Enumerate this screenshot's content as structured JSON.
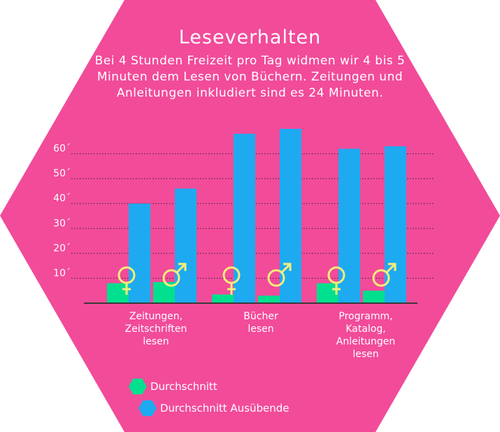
{
  "colors": {
    "background": "#f24b9a",
    "avg": "#00e08e",
    "active": "#1eaaf0",
    "symbol": "#f4ee7a",
    "text": "#ffffff"
  },
  "header": {
    "title": "Leseverhalten",
    "subtitle": "Bei 4 Stunden Freizeit pro Tag widmen wir 4 bis 5 Minuten dem Lesen von Büchern. Zeitungen und Anleitungen inkludiert sind es 24 Minuten."
  },
  "legend": {
    "items": [
      {
        "label": "Durchschnitt",
        "color": "#00e08e"
      },
      {
        "label": "Durchschnitt Ausübende",
        "color": "#1eaaf0"
      }
    ]
  },
  "chart_data": {
    "type": "bar",
    "title": "Leseverhalten",
    "ylim": [
      0,
      70
    ],
    "yticks": [
      {
        "value": 10,
        "label": "10´"
      },
      {
        "value": 20,
        "label": "20´"
      },
      {
        "value": 30,
        "label": "30´"
      },
      {
        "value": 40,
        "label": "40´"
      },
      {
        "value": 50,
        "label": "50´"
      },
      {
        "value": 60,
        "label": "60´"
      }
    ],
    "grid": true,
    "legend_position": "bottom-left",
    "categories": [
      {
        "lines": [
          "Zeitungen,",
          "Zeitschriften",
          "lesen"
        ],
        "groups": [
          {
            "gender": "female",
            "symbol": "♀",
            "avg": 8,
            "active": 40
          },
          {
            "gender": "male",
            "symbol": "♂",
            "avg": 8.5,
            "active": 46
          }
        ]
      },
      {
        "lines": [
          "Bücher",
          "lesen"
        ],
        "groups": [
          {
            "gender": "female",
            "symbol": "♀",
            "avg": 3.5,
            "active": 68
          },
          {
            "gender": "male",
            "symbol": "♂",
            "avg": 3,
            "active": 70
          }
        ]
      },
      {
        "lines": [
          "Programm,",
          "Katalog,",
          "Anleitungen",
          "lesen"
        ],
        "groups": [
          {
            "gender": "female",
            "symbol": "♀",
            "avg": 8,
            "active": 62
          },
          {
            "gender": "male",
            "symbol": "♂",
            "avg": 5,
            "active": 63
          }
        ]
      }
    ]
  }
}
